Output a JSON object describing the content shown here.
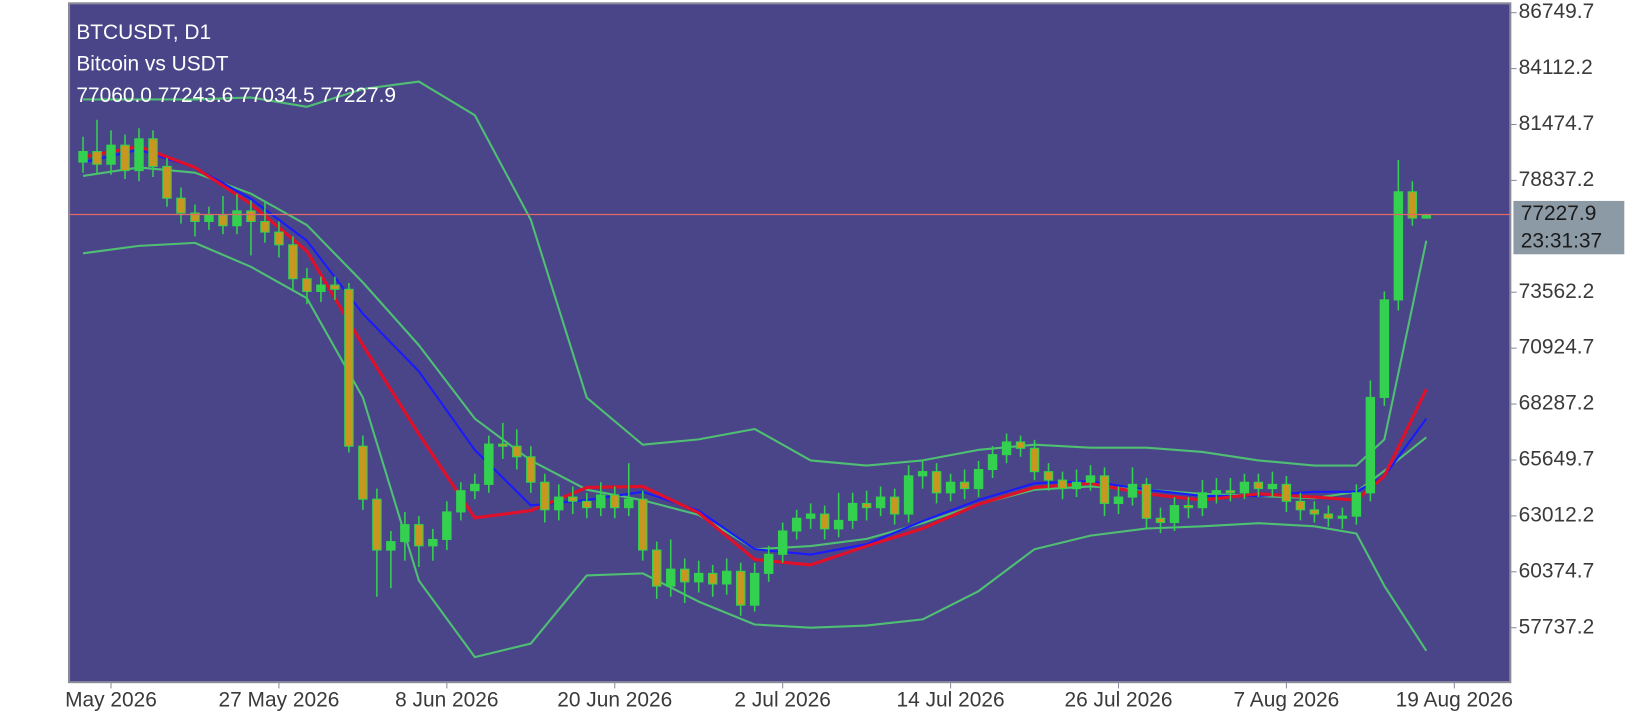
{
  "chart_data": {
    "type": "candlestick",
    "title": "BTCUSDT, D1",
    "subtitle": "Bitcoin vs USDT",
    "ohlc_text": "77060.0 77243.6 77034.5 77227.9",
    "last_price": 77227.9,
    "timer": "23:31:37",
    "up_color": "#33d14f",
    "down_color": "#c9961f",
    "outline_color": "#33d14f",
    "background": "#4a4589",
    "last_price_color": "#e06a6a",
    "xlim": [
      "2026-05-12",
      "2026-08-23"
    ],
    "xticks": [
      {
        "value": "2026-05-15",
        "label": "May 2026"
      },
      {
        "value": "2026-05-27",
        "label": "27 May 2026"
      },
      {
        "value": "2026-06-08",
        "label": "8 Jun 2026"
      },
      {
        "value": "2026-06-20",
        "label": "20 Jun 2026"
      },
      {
        "value": "2026-07-02",
        "label": "2 Jul 2026"
      },
      {
        "value": "2026-07-14",
        "label": "14 Jul 2026"
      },
      {
        "value": "2026-07-26",
        "label": "26 Jul 2026"
      },
      {
        "value": "2026-08-07",
        "label": "7 Aug 2026"
      },
      {
        "value": "2026-08-19",
        "label": "19 Aug 2026"
      }
    ],
    "ylim": [
      55170,
      87190
    ],
    "yticks": [
      86749.7,
      84112.2,
      81474.7,
      78837.2,
      73562.2,
      70924.7,
      68287.2,
      65649.7,
      63012.2,
      60374.7,
      57737.2
    ],
    "x": [
      "2026-05-13",
      "2026-05-14",
      "2026-05-15",
      "2026-05-16",
      "2026-05-17",
      "2026-05-18",
      "2026-05-19",
      "2026-05-20",
      "2026-05-21",
      "2026-05-22",
      "2026-05-23",
      "2026-05-24",
      "2026-05-25",
      "2026-05-26",
      "2026-05-27",
      "2026-05-28",
      "2026-05-29",
      "2026-05-30",
      "2026-05-31",
      "2026-06-01",
      "2026-06-02",
      "2026-06-03",
      "2026-06-04",
      "2026-06-05",
      "2026-06-06",
      "2026-06-07",
      "2026-06-08",
      "2026-06-09",
      "2026-06-10",
      "2026-06-11",
      "2026-06-12",
      "2026-06-13",
      "2026-06-14",
      "2026-06-15",
      "2026-06-16",
      "2026-06-17",
      "2026-06-18",
      "2026-06-19",
      "2026-06-20",
      "2026-06-21",
      "2026-06-22",
      "2026-06-23",
      "2026-06-24",
      "2026-06-25",
      "2026-06-26",
      "2026-06-27",
      "2026-06-28",
      "2026-06-29",
      "2026-06-30",
      "2026-07-01",
      "2026-07-02",
      "2026-07-03",
      "2026-07-04",
      "2026-07-05",
      "2026-07-06",
      "2026-07-07",
      "2026-07-08",
      "2026-07-09",
      "2026-07-10",
      "2026-07-11",
      "2026-07-12",
      "2026-07-13",
      "2026-07-14",
      "2026-07-15",
      "2026-07-16",
      "2026-07-17",
      "2026-07-18",
      "2026-07-19",
      "2026-07-20",
      "2026-07-21",
      "2026-07-22",
      "2026-07-23",
      "2026-07-24",
      "2026-07-25",
      "2026-07-26",
      "2026-07-27",
      "2026-07-28",
      "2026-07-29",
      "2026-07-30",
      "2026-07-31",
      "2026-08-01",
      "2026-08-02",
      "2026-08-03",
      "2026-08-04",
      "2026-08-05",
      "2026-08-06",
      "2026-08-07",
      "2026-08-08",
      "2026-08-09",
      "2026-08-10",
      "2026-08-11",
      "2026-08-12",
      "2026-08-13",
      "2026-08-14",
      "2026-08-15",
      "2026-08-16",
      "2026-08-17"
    ],
    "open": [
      79700,
      80200,
      79600,
      80500,
      79300,
      80800,
      79500,
      78000,
      77300,
      76900,
      77200,
      76700,
      77400,
      76900,
      76400,
      75800,
      74200,
      73600,
      73900,
      73700,
      66300,
      63800,
      61400,
      61800,
      62600,
      61600,
      61900,
      63200,
      64200,
      64500,
      66400,
      66300,
      65800,
      64600,
      63300,
      63900,
      63700,
      63400,
      64000,
      63400,
      63800,
      61400,
      59700,
      60500,
      59900,
      60300,
      59800,
      60400,
      58800,
      60300,
      61200,
      62300,
      62900,
      63100,
      62400,
      62800,
      63600,
      63400,
      63900,
      63100,
      64900,
      65100,
      64100,
      64600,
      64300,
      65200,
      65900,
      66500,
      66200,
      65100,
      64700,
      64300,
      64600,
      64900,
      63600,
      63900,
      64500,
      62900,
      62700,
      63500,
      63400,
      64100,
      64200,
      64100,
      64600,
      64300,
      64500,
      63700,
      63300,
      63100,
      62900,
      63000,
      64100,
      68600,
      73200,
      78300,
      77060.0
    ],
    "high": [
      80900,
      81700,
      81200,
      81000,
      81300,
      81200,
      79900,
      78500,
      77700,
      77600,
      78100,
      78200,
      77900,
      77800,
      76900,
      76200,
      74700,
      74300,
      74300,
      74000,
      66800,
      64300,
      62300,
      63200,
      63000,
      62400,
      63700,
      64600,
      65000,
      66800,
      67400,
      67100,
      66300,
      65000,
      64500,
      64400,
      64100,
      64600,
      64400,
      65500,
      64200,
      61800,
      61900,
      61000,
      60900,
      60700,
      61000,
      60800,
      60800,
      61600,
      62700,
      63300,
      63600,
      63500,
      64100,
      64100,
      64200,
      64400,
      64300,
      65400,
      65600,
      65500,
      65000,
      65200,
      65600,
      66300,
      66900,
      66800,
      66600,
      65500,
      65100,
      65200,
      65400,
      65300,
      64400,
      65300,
      64800,
      63400,
      63900,
      63900,
      64700,
      64800,
      64800,
      65000,
      65000,
      65100,
      64900,
      64100,
      63700,
      63500,
      63400,
      64500,
      69400,
      73600,
      79800,
      78800,
      77243.6
    ],
    "low": [
      79200,
      79100,
      79100,
      78900,
      78800,
      79000,
      77600,
      76800,
      76200,
      76500,
      76300,
      76300,
      75300,
      75900,
      75200,
      73700,
      73000,
      73100,
      73200,
      66000,
      63300,
      59200,
      59600,
      60900,
      60600,
      60900,
      61400,
      62800,
      63800,
      64100,
      65700,
      65200,
      64100,
      62700,
      62800,
      63100,
      62900,
      63000,
      62900,
      63000,
      60900,
      59100,
      59200,
      58900,
      59400,
      59200,
      59300,
      58300,
      58500,
      59900,
      60800,
      61900,
      62400,
      61900,
      62000,
      62400,
      62800,
      63000,
      62600,
      62700,
      64300,
      63600,
      63700,
      63800,
      63900,
      64800,
      65500,
      65800,
      64700,
      64200,
      63800,
      63900,
      64200,
      63000,
      63100,
      63500,
      62400,
      62200,
      62300,
      62900,
      63000,
      63600,
      63700,
      63800,
      63900,
      63900,
      63200,
      62800,
      62700,
      62500,
      62400,
      62600,
      63700,
      68200,
      72700,
      76700,
      77034.5
    ],
    "close": [
      80200,
      79600,
      80500,
      79300,
      80800,
      79500,
      78000,
      77300,
      76900,
      77200,
      76700,
      77400,
      76900,
      76400,
      75800,
      74200,
      73600,
      73900,
      73700,
      66300,
      63800,
      61400,
      61800,
      62600,
      61600,
      61900,
      63200,
      64200,
      64500,
      66400,
      66300,
      65800,
      64600,
      63300,
      63900,
      63700,
      63400,
      64000,
      63400,
      63800,
      61400,
      59700,
      60500,
      59900,
      60300,
      59800,
      60400,
      58800,
      60300,
      61200,
      62300,
      62900,
      63100,
      62400,
      62800,
      63600,
      63400,
      63900,
      63100,
      64900,
      65100,
      64100,
      64600,
      64300,
      65200,
      65900,
      66500,
      66200,
      65100,
      64700,
      64300,
      64600,
      64900,
      63600,
      63900,
      64500,
      62900,
      62700,
      63500,
      63400,
      64100,
      64200,
      64100,
      64600,
      64300,
      64500,
      63700,
      63300,
      63100,
      62900,
      63000,
      64100,
      68600,
      73200,
      78300,
      77060.0,
      77227.9
    ],
    "indicators": {
      "x": [
        "2026-05-13",
        "2026-05-17",
        "2026-05-21",
        "2026-05-25",
        "2026-05-29",
        "2026-06-02",
        "2026-06-06",
        "2026-06-10",
        "2026-06-14",
        "2026-06-18",
        "2026-06-22",
        "2026-06-26",
        "2026-06-30",
        "2026-07-04",
        "2026-07-08",
        "2026-07-12",
        "2026-07-16",
        "2026-07-20",
        "2026-07-24",
        "2026-07-28",
        "2026-08-01",
        "2026-08-05",
        "2026-08-09",
        "2026-08-12",
        "2026-08-14",
        "2026-08-17"
      ],
      "lines": [
        {
          "color": "#4fbf73",
          "width": 2,
          "values": [
            82655,
            82655,
            82655,
            82750,
            82310,
            83150,
            83500,
            81910,
            76980,
            68590,
            66370,
            66620,
            67110,
            65630,
            65390,
            65630,
            66130,
            66370,
            66230,
            66230,
            66030,
            65630,
            65390,
            65390,
            66620,
            75990
          ]
        },
        {
          "color": "#4fbf73",
          "width": 2,
          "values": [
            79050,
            79450,
            79200,
            78210,
            76730,
            74020,
            71060,
            67600,
            65630,
            64250,
            63750,
            63060,
            61440,
            61590,
            61930,
            62670,
            63560,
            64250,
            64400,
            64250,
            64050,
            63950,
            63850,
            64150,
            65140,
            66720
          ]
        },
        {
          "color": "#4fbf73",
          "width": 2,
          "values": [
            75400,
            75747,
            75894,
            74760,
            73280,
            68590,
            59960,
            56350,
            56990,
            60200,
            60300,
            58970,
            57890,
            57740,
            57840,
            58130,
            59460,
            61440,
            62080,
            62420,
            62520,
            62670,
            62520,
            62180,
            59710,
            56650
          ]
        },
        {
          "color": "#1a1aff",
          "width": 2,
          "values": [
            79690,
            80290,
            79450,
            77970,
            75990,
            72540,
            69830,
            66120,
            63510,
            63760,
            64150,
            63260,
            61440,
            61190,
            61680,
            62770,
            63760,
            64550,
            64650,
            64250,
            63950,
            63950,
            64150,
            64150,
            64890,
            67600
          ]
        },
        {
          "color": "#e0102a",
          "width": 3,
          "values": [
            79940,
            80440,
            79450,
            77720,
            75500,
            71060,
            66870,
            62920,
            63260,
            64350,
            64400,
            63160,
            60950,
            60700,
            61590,
            62420,
            63560,
            64350,
            64550,
            64050,
            63760,
            64050,
            63900,
            63760,
            64890,
            68990
          ]
        }
      ]
    }
  }
}
